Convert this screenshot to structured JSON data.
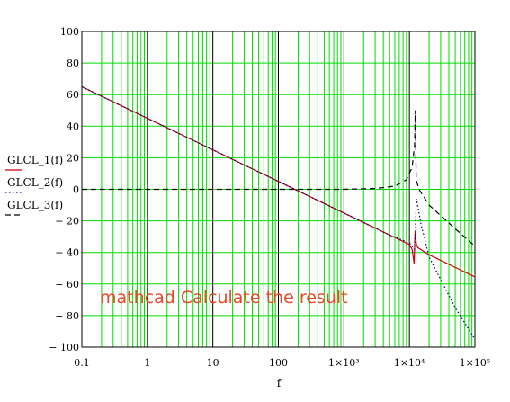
{
  "chart_data": {
    "type": "line",
    "x_scale": "log",
    "xlim": [
      0.1,
      100000
    ],
    "ylim": [
      -100,
      100
    ],
    "grid": true,
    "xlabel": "f",
    "ylabel": "",
    "x_tick_labels": [
      "0.1",
      "1",
      "10",
      "100",
      "1×10³",
      "1×10⁴",
      "1×10⁵"
    ],
    "y_ticks": [
      -100,
      -80,
      -60,
      -40,
      -20,
      0,
      20,
      40,
      60,
      80,
      100
    ],
    "y_tick_labels": [
      "− 100",
      "− 80",
      "− 60",
      "− 40",
      "− 20",
      "0",
      "20",
      "40",
      "60",
      "80",
      "100"
    ],
    "legend_placement": "left",
    "annotation": "mathcad Calculate the result",
    "series": [
      {
        "name": "GLCL_1(f)",
        "color": "#cc0000",
        "style": "solid",
        "points": [
          [
            0.1,
            65
          ],
          [
            1,
            45
          ],
          [
            10,
            25
          ],
          [
            100,
            5
          ],
          [
            1000,
            -15
          ],
          [
            5000,
            -29
          ],
          [
            10000,
            -35
          ],
          [
            11000,
            -38
          ],
          [
            11800,
            -47
          ],
          [
            12200,
            -27
          ],
          [
            12800,
            -35
          ],
          [
            13500,
            -37
          ],
          [
            20000,
            -41.5
          ],
          [
            100000,
            -55.5
          ]
        ]
      },
      {
        "name": "GLCL_2(f)",
        "color": "#000080",
        "style": "dotted",
        "points": [
          [
            0.1,
            65
          ],
          [
            1,
            45
          ],
          [
            10,
            25
          ],
          [
            100,
            5
          ],
          [
            1000,
            -15
          ],
          [
            5000,
            -29
          ],
          [
            10000,
            -34
          ],
          [
            11000,
            -36
          ],
          [
            12000,
            -38
          ],
          [
            12800,
            -6
          ],
          [
            13500,
            -11
          ],
          [
            15000,
            -22
          ],
          [
            20000,
            -43
          ],
          [
            50000,
            -75
          ],
          [
            100000,
            -95
          ]
        ]
      },
      {
        "name": "GLCL_3(f)",
        "color": "#000000",
        "style": "dashed",
        "points": [
          [
            0.1,
            0
          ],
          [
            100,
            0
          ],
          [
            1000,
            0
          ],
          [
            3000,
            0.5
          ],
          [
            6000,
            2
          ],
          [
            9000,
            6
          ],
          [
            11000,
            14
          ],
          [
            12000,
            28
          ],
          [
            12300,
            50
          ],
          [
            12700,
            6
          ],
          [
            14000,
            0
          ],
          [
            20000,
            -10
          ],
          [
            50000,
            -25
          ],
          [
            100000,
            -36
          ]
        ]
      }
    ]
  }
}
